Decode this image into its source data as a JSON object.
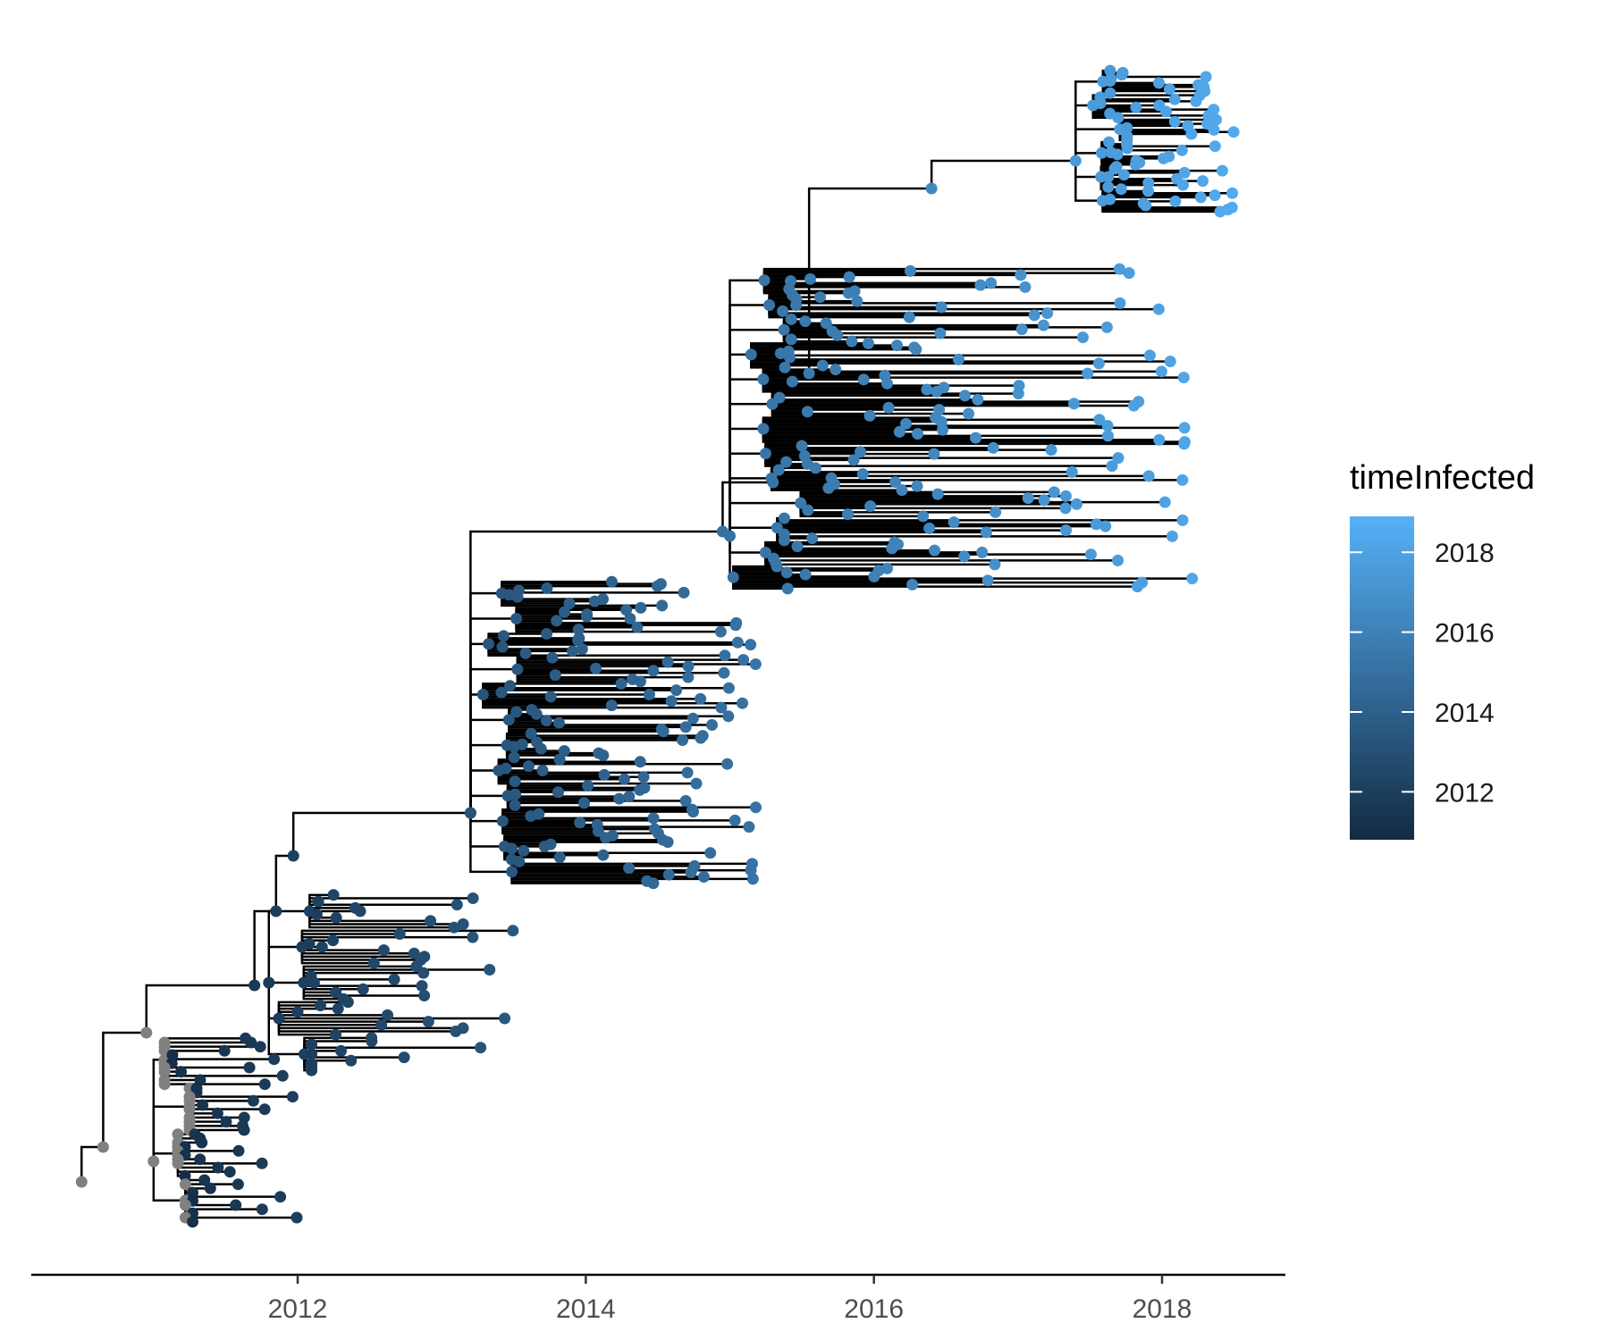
{
  "chart_data": {
    "type": "phylogenetic-tree",
    "x_axis": {
      "range": [
        2010.0,
        2018.9
      ],
      "ticks": [
        2012,
        2014,
        2016,
        2018
      ],
      "tick_labels": [
        "2012",
        "2014",
        "2016",
        "2018"
      ],
      "label": ""
    },
    "grid": false,
    "legend": {
      "title": "timeInfected",
      "placement": "right",
      "type": "continuous-colorbar",
      "range": [
        2010.8,
        2018.9
      ],
      "breaks": [
        2018,
        2016,
        2014,
        2012
      ],
      "break_labels": [
        "2018",
        "2016",
        "2014",
        "2012"
      ],
      "low_color": "#132b43",
      "high_color": "#56b1f7"
    },
    "missing_color": "#808080",
    "branch_color": "#000000",
    "clades": [
      {
        "root_time": 2011.0,
        "tips_from": 2011.0,
        "tips_to": 2012.0,
        "n_tips": 45,
        "color_scale": "mixed"
      },
      {
        "root_time": 2011.8,
        "tips_from": 2011.9,
        "tips_to": 2013.5,
        "n_tips": 55
      },
      {
        "root_time": 2013.2,
        "tips_from": 2013.4,
        "tips_to": 2015.2,
        "n_tips": 140
      },
      {
        "root_time": 2015.0,
        "tips_from": 2015.3,
        "tips_to": 2018.3,
        "n_tips": 160
      },
      {
        "root_time": 2017.4,
        "tips_from": 2017.5,
        "tips_to": 2018.5,
        "n_tips": 70
      }
    ]
  }
}
